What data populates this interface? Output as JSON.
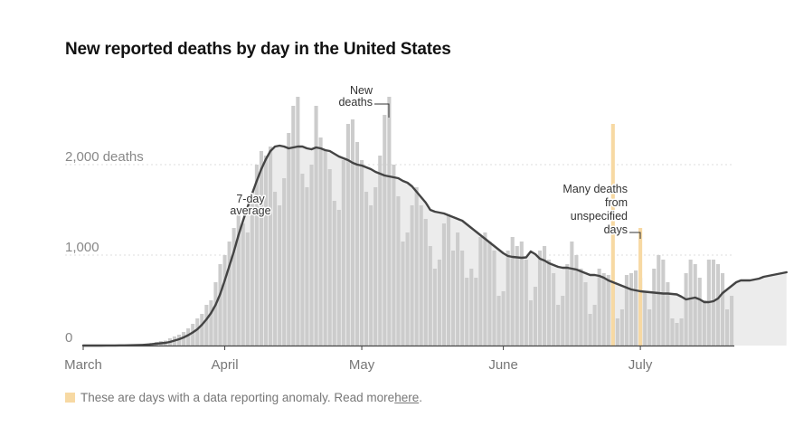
{
  "title": "New reported deaths by day in the United States",
  "footnote": {
    "text": "These are days with a data reporting anomaly. Read more ",
    "link_text": "here",
    "end": ".",
    "swatch_color": "#f7d9a3"
  },
  "chart_data": {
    "type": "bar",
    "x_start": "2020-03-01",
    "y_ticks": [
      {
        "value": 0,
        "label": "0"
      },
      {
        "value": 1000,
        "label": "1,000"
      },
      {
        "value": 2000,
        "label": "2,000 deaths"
      }
    ],
    "ylim": [
      0,
      2800
    ],
    "x_ticks": [
      {
        "date": "2020-03-01",
        "label": "March"
      },
      {
        "date": "2020-04-01",
        "label": "April"
      },
      {
        "date": "2020-05-01",
        "label": "May"
      },
      {
        "date": "2020-06-01",
        "label": "June"
      },
      {
        "date": "2020-07-01",
        "label": "July"
      }
    ],
    "grid": true,
    "colors": {
      "bar": "#cccccc",
      "bar_gap_fill": "#ececec",
      "anomaly_bar": "#f7d9a3",
      "line": "#444444",
      "axis": "#444444",
      "grid": "#dddddd"
    },
    "series": [
      {
        "name": "New deaths",
        "values": [
          0,
          0,
          0,
          1,
          1,
          1,
          2,
          2,
          2,
          3,
          5,
          6,
          10,
          14,
          20,
          30,
          40,
          50,
          55,
          80,
          100,
          120,
          150,
          190,
          240,
          300,
          350,
          450,
          500,
          700,
          900,
          1000,
          1150,
          1300,
          1450,
          1350,
          1250,
          1600,
          2000,
          2150,
          2100,
          2200,
          1700,
          1550,
          1850,
          2350,
          2650,
          2750,
          1900,
          1750,
          2000,
          2650,
          2300,
          2150,
          1950,
          1600,
          1500,
          2050,
          2450,
          2500,
          2250,
          2050,
          1700,
          1550,
          1750,
          2100,
          2550,
          2750,
          2000,
          1650,
          1150,
          1250,
          1550,
          1750,
          1550,
          1400,
          1100,
          850,
          950,
          1350,
          1450,
          1050,
          1250,
          1050,
          750,
          850,
          750,
          1200,
          1250,
          1150,
          1050,
          550,
          600,
          1050,
          1200,
          1100,
          1150,
          950,
          500,
          650,
          1050,
          1100,
          950,
          800,
          450,
          550,
          900,
          1150,
          1000,
          850,
          700,
          350,
          450,
          850,
          800,
          780,
          650,
          300,
          400,
          780,
          800,
          830,
          750,
          600,
          400,
          850,
          1000,
          950,
          700,
          300,
          250,
          300,
          800,
          950,
          900,
          750,
          500,
          950,
          950,
          900,
          800,
          400,
          550
        ],
        "anomalies": [
          {
            "date": "2020-06-25",
            "value": 2450
          },
          {
            "date": "2020-07-01",
            "value": 1300
          }
        ]
      },
      {
        "name": "7-day average",
        "values": [
          0,
          0,
          0,
          0,
          0,
          1,
          1,
          1,
          2,
          2,
          3,
          4,
          5,
          7,
          10,
          14,
          20,
          25,
          30,
          40,
          55,
          70,
          90,
          115,
          145,
          180,
          230,
          290,
          360,
          450,
          570,
          720,
          880,
          1040,
          1220,
          1380,
          1530,
          1680,
          1820,
          1950,
          2060,
          2150,
          2200,
          2210,
          2200,
          2180,
          2190,
          2200,
          2200,
          2180,
          2170,
          2190,
          2180,
          2160,
          2150,
          2120,
          2090,
          2070,
          2050,
          2020,
          2000,
          1990,
          1970,
          1950,
          1920,
          1900,
          1880,
          1870,
          1860,
          1850,
          1820,
          1800,
          1760,
          1700,
          1640,
          1580,
          1500,
          1480,
          1470,
          1460,
          1440,
          1420,
          1400,
          1380,
          1340,
          1300,
          1260,
          1220,
          1180,
          1140,
          1100,
          1060,
          1020,
          990,
          980,
          975,
          970,
          975,
          1040,
          1010,
          960,
          940,
          910,
          890,
          870,
          860,
          860,
          850,
          840,
          820,
          800,
          780,
          780,
          770,
          750,
          720,
          700,
          680,
          660,
          640,
          620,
          610,
          600,
          595,
          590,
          585,
          580,
          575,
          575,
          570,
          565,
          540,
          510,
          520,
          530,
          510,
          480,
          480,
          490,
          520,
          580,
          620,
          660,
          700,
          720,
          720,
          720,
          730,
          740,
          760,
          770,
          780,
          790,
          800,
          810
        ]
      }
    ],
    "annotations": [
      {
        "label": [
          "New",
          "deaths"
        ]
      },
      {
        "label": [
          "7-day",
          "average"
        ]
      },
      {
        "label": [
          "Many deaths",
          "from",
          "unspecified",
          "days"
        ]
      }
    ]
  }
}
